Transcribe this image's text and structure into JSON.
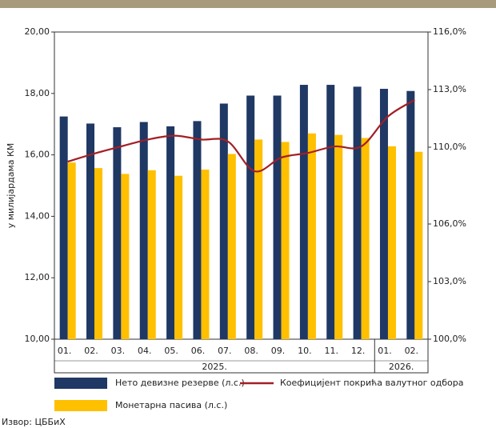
{
  "chart_data": {
    "type": "bar",
    "y_label": "у милијардама КМ",
    "category_groups": [
      {
        "label": "2025.",
        "categories": [
          "01.",
          "02.",
          "03.",
          "04.",
          "05.",
          "06.",
          "07.",
          "08.",
          "09.",
          "10.",
          "11.",
          "12."
        ]
      },
      {
        "label": "2026.",
        "categories": [
          "01.",
          "02."
        ]
      }
    ],
    "series": [
      {
        "name": "Нето девизне резерве (л.с.)",
        "type": "bar",
        "axis": "y",
        "color": "#1f3864",
        "values": [
          17.25,
          17.02,
          16.9,
          17.07,
          16.93,
          17.1,
          17.67,
          17.93,
          17.93,
          18.28,
          18.28,
          18.22,
          18.15,
          18.08
        ]
      },
      {
        "name": "Монетарна пасива (л.с.)",
        "type": "bar",
        "axis": "y",
        "color": "#ffc000",
        "values": [
          15.75,
          15.57,
          15.38,
          15.5,
          15.32,
          15.52,
          16.03,
          16.5,
          16.42,
          16.7,
          16.65,
          16.55,
          16.28,
          16.1
        ]
      },
      {
        "name": "Коефицијент покрића валутног одбора",
        "type": "line",
        "axis": "y2",
        "color": "#a31f24",
        "values": [
          109.25,
          109.67,
          110.04,
          110.4,
          110.6,
          110.4,
          110.3,
          108.75,
          109.46,
          109.7,
          110.04,
          110.04,
          111.6,
          112.46
        ]
      }
    ],
    "ylim": [
      10,
      20
    ],
    "yticks": [
      {
        "value": 10,
        "label": "10,00"
      },
      {
        "value": 12,
        "label": "12,00"
      },
      {
        "value": 14,
        "label": "14,00"
      },
      {
        "value": 16,
        "label": "16,00"
      },
      {
        "value": 18,
        "label": "18,00"
      },
      {
        "value": 20,
        "label": "20,00"
      }
    ],
    "y2lim": [
      100,
      116
    ],
    "y2ticks": [
      {
        "value": 100,
        "label": "100,0%"
      },
      {
        "value": 103,
        "label": "103,0%"
      },
      {
        "value": 106,
        "label": "106,0%"
      },
      {
        "value": 110,
        "label": "110,0%"
      },
      {
        "value": 113,
        "label": "113,0%"
      },
      {
        "value": 116,
        "label": "116,0%"
      }
    ],
    "source": "Извор: ЦББиХ"
  }
}
